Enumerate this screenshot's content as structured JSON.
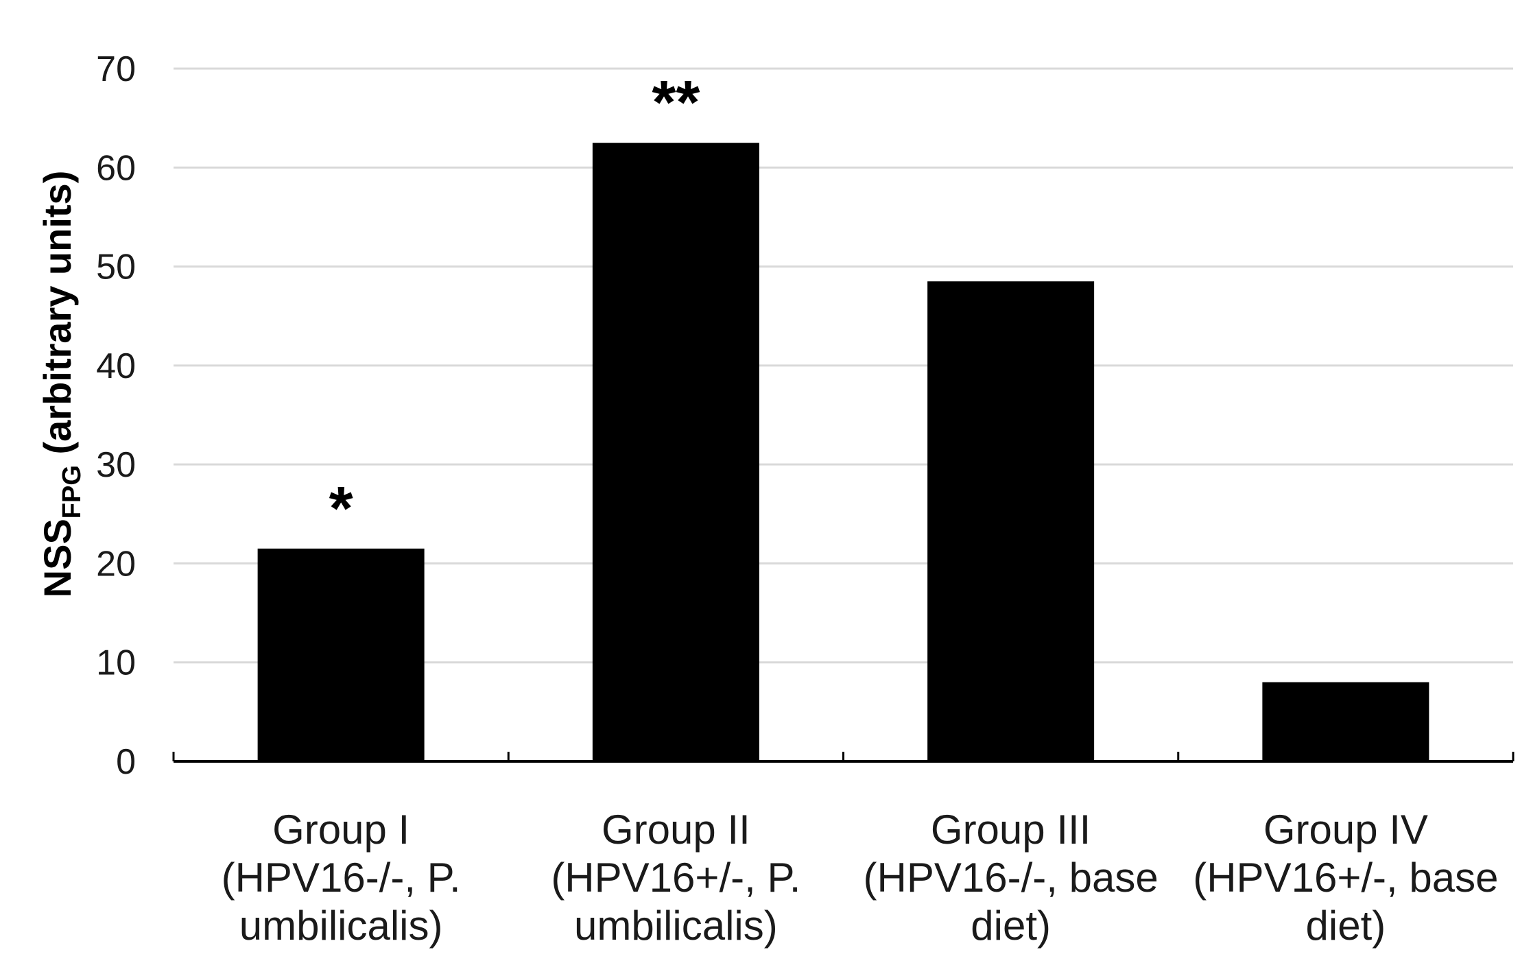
{
  "chart_data": {
    "type": "bar",
    "categories": [
      [
        "Group I",
        "(HPV16-/-, P.",
        "umbilicalis)"
      ],
      [
        "Group II",
        "(HPV16+/-, P.",
        "umbilicalis)"
      ],
      [
        "Group III",
        "(HPV16-/-, base",
        "diet)"
      ],
      [
        "Group IV",
        "(HPV16+/-, base",
        "diet)"
      ]
    ],
    "values": [
      21.5,
      62.5,
      48.5,
      8
    ],
    "annotations": [
      "*",
      "**",
      "",
      ""
    ],
    "ylabel": {
      "main": "NSS",
      "sub": "FPG",
      "rest": " (arbitrary units)"
    },
    "ylim": [
      0,
      70
    ],
    "yticks": [
      0,
      10,
      20,
      30,
      40,
      50,
      60,
      70
    ],
    "grid": true,
    "bar_color": "#000000",
    "grid_color": "#d9d9d9"
  }
}
